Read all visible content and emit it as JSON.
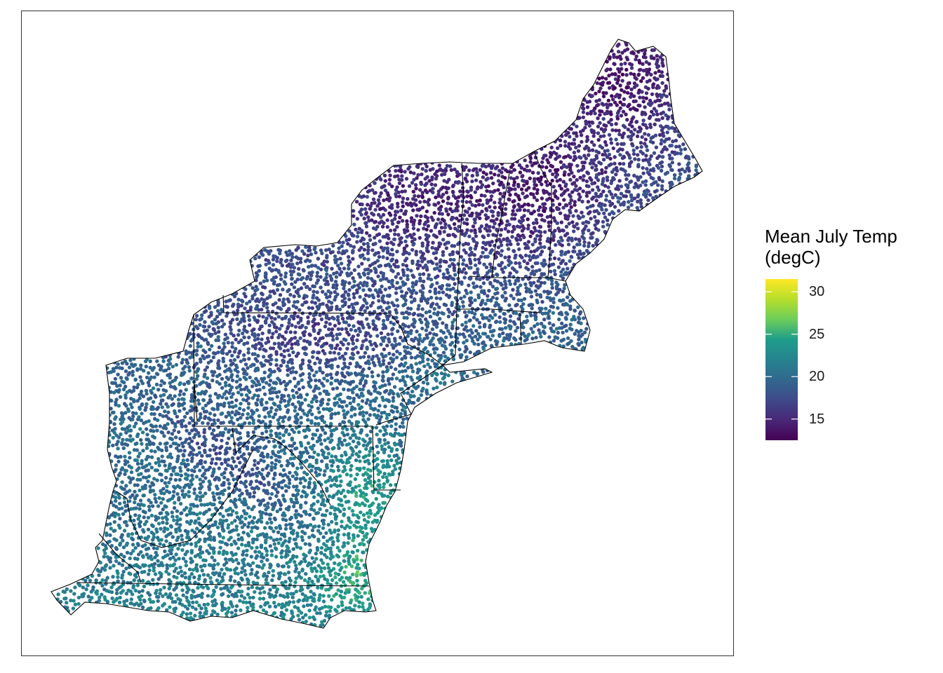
{
  "legend": {
    "title_line1": "Mean July Temp",
    "title_line2": "(degC)",
    "min": 12.5,
    "max": 31.5,
    "ticks": [
      {
        "value": 15,
        "label": "15"
      },
      {
        "value": 20,
        "label": "20"
      },
      {
        "value": 25,
        "label": "25"
      },
      {
        "value": 30,
        "label": "30"
      }
    ],
    "palette": [
      "#440154",
      "#482777",
      "#3f4a8a",
      "#31678e",
      "#26838f",
      "#1f9d8a",
      "#6cce5a",
      "#b6de2b",
      "#fee825"
    ]
  },
  "map": {
    "state_boundary_color": "#000000",
    "point_color_scale": "viridis"
  }
}
